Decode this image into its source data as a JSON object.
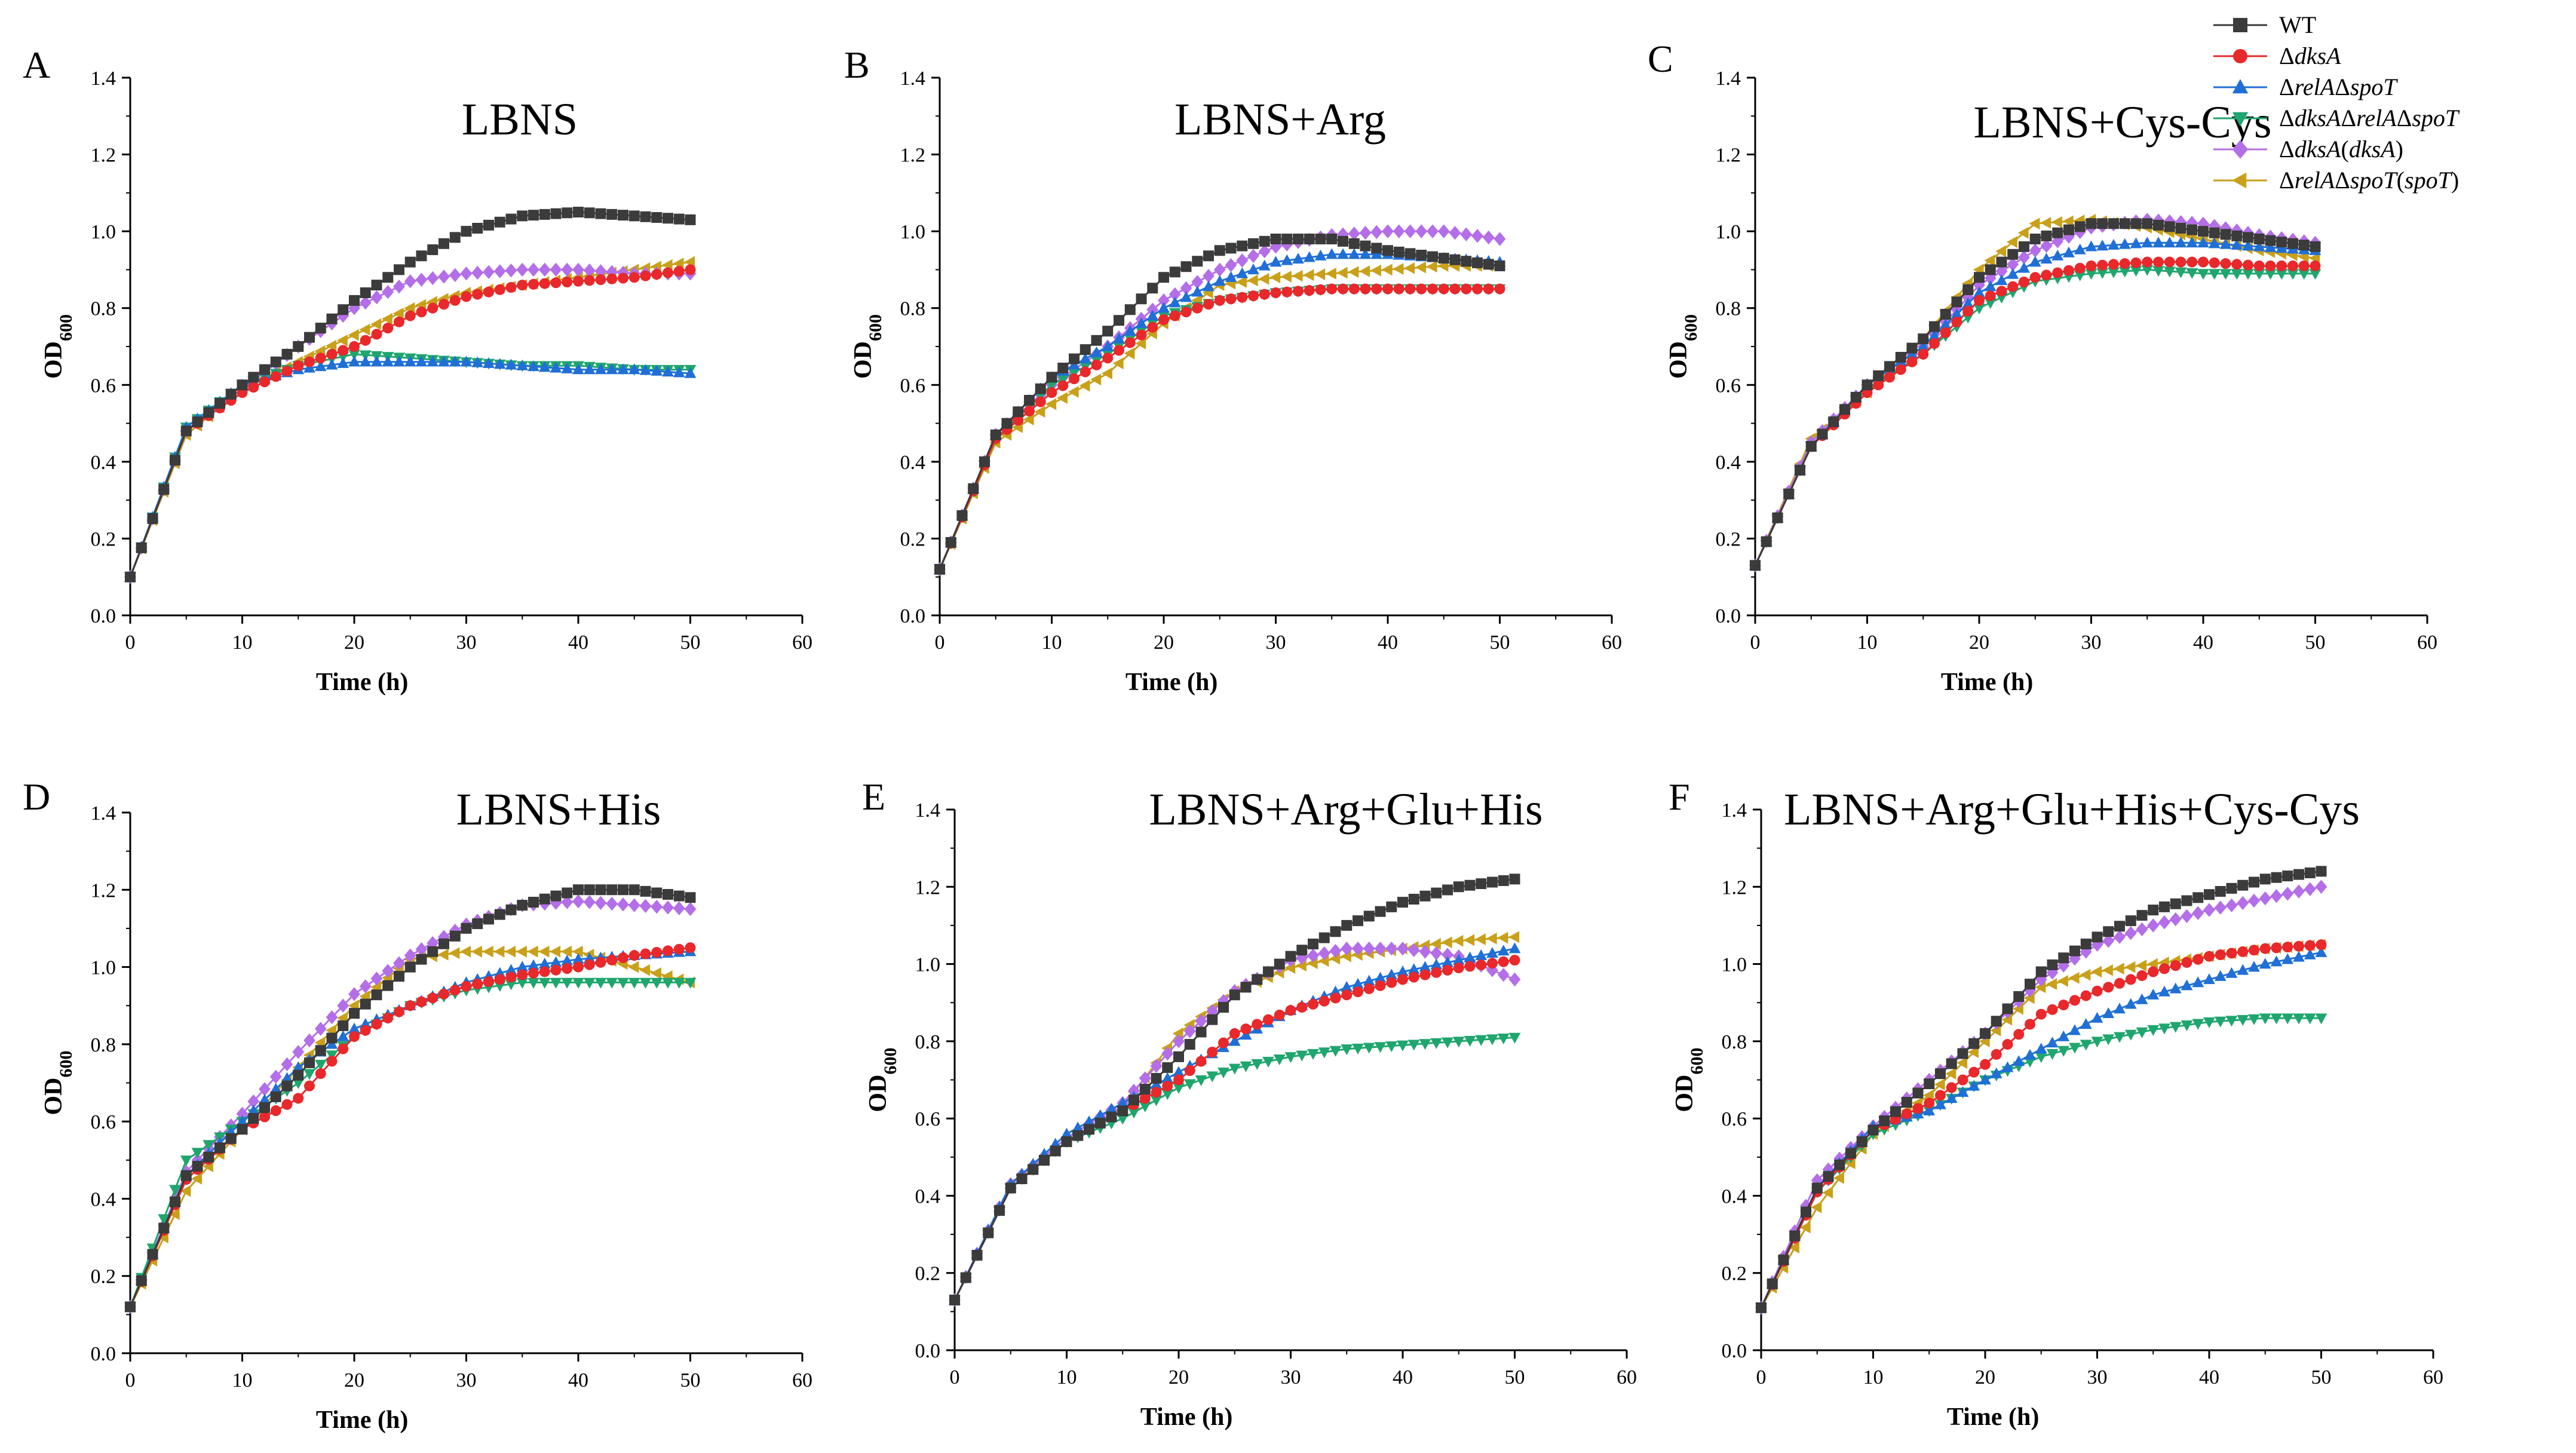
{
  "legend": [
    {
      "key": "WT",
      "parts": [
        {
          "t": "WT",
          "i": false
        }
      ],
      "color": "#3b3b3b",
      "marker": "square"
    },
    {
      "key": "dksA",
      "parts": [
        {
          "t": "Δ",
          "i": false
        },
        {
          "t": "dksA",
          "i": true
        }
      ],
      "color": "#e8282b",
      "marker": "circle"
    },
    {
      "key": "relAspoT",
      "parts": [
        {
          "t": "Δ",
          "i": false
        },
        {
          "t": "relA",
          "i": true
        },
        {
          "t": "Δ",
          "i": false
        },
        {
          "t": "spoT",
          "i": true
        }
      ],
      "color": "#1f6fd6",
      "marker": "triangle-up"
    },
    {
      "key": "dksArelAspoT",
      "parts": [
        {
          "t": "Δ",
          "i": false
        },
        {
          "t": "dksA",
          "i": true
        },
        {
          "t": "Δ",
          "i": false
        },
        {
          "t": "relA",
          "i": true
        },
        {
          "t": "Δ",
          "i": false
        },
        {
          "t": "spoT",
          "i": true
        }
      ],
      "color": "#1fa66e",
      "marker": "triangle-down"
    },
    {
      "key": "dksA_comp",
      "parts": [
        {
          "t": "Δ",
          "i": false
        },
        {
          "t": "dksA",
          "i": true
        },
        {
          "t": "(",
          "i": false
        },
        {
          "t": "dksA",
          "i": true
        },
        {
          "t": ")",
          "i": false
        }
      ],
      "color": "#b46ee8",
      "marker": "diamond"
    },
    {
      "key": "relAspoT_comp",
      "parts": [
        {
          "t": "Δ",
          "i": false
        },
        {
          "t": "relA",
          "i": true
        },
        {
          "t": "Δ",
          "i": false
        },
        {
          "t": "spoT",
          "i": true
        },
        {
          "t": "(",
          "i": false
        },
        {
          "t": "spoT",
          "i": true
        },
        {
          "t": ")",
          "i": false
        }
      ],
      "color": "#c9a01a",
      "marker": "triangle-left"
    }
  ],
  "chart_data": [
    {
      "type": "line",
      "panel": "A",
      "title": "LBNS",
      "xlabel": "Time (h)",
      "ylabel": "OD600",
      "xlim": [
        0,
        60
      ],
      "ylim": [
        0,
        1.4
      ],
      "xticks": [
        "0",
        "10",
        "20",
        "30",
        "40",
        "50",
        "60"
      ],
      "yticks": [
        "0.0",
        "0.2",
        "0.4",
        "0.6",
        "0.8",
        "1.0",
        "1.2",
        "1.4"
      ],
      "x": [
        0,
        5,
        10,
        15,
        20,
        25,
        30,
        35,
        40,
        45,
        50
      ],
      "series": [
        {
          "name": "WT",
          "values": [
            0.1,
            0.48,
            0.6,
            0.7,
            0.82,
            0.92,
            1.0,
            1.04,
            1.05,
            1.04,
            1.03
          ]
        },
        {
          "name": "ΔdksA",
          "values": [
            0.1,
            0.48,
            0.58,
            0.65,
            0.7,
            0.78,
            0.83,
            0.86,
            0.87,
            0.88,
            0.9
          ]
        },
        {
          "name": "ΔrelAΔspoT",
          "values": [
            0.1,
            0.49,
            0.6,
            0.64,
            0.66,
            0.66,
            0.66,
            0.65,
            0.64,
            0.64,
            0.63
          ]
        },
        {
          "name": "ΔdksAΔrelAΔspoT",
          "values": [
            0.1,
            0.49,
            0.6,
            0.65,
            0.68,
            0.67,
            0.66,
            0.65,
            0.65,
            0.64,
            0.64
          ]
        },
        {
          "name": "ΔdksA(dksA)",
          "values": [
            0.1,
            0.48,
            0.59,
            0.7,
            0.8,
            0.87,
            0.89,
            0.9,
            0.9,
            0.89,
            0.89
          ]
        },
        {
          "name": "ΔrelAΔspoT(spoT)",
          "values": [
            0.1,
            0.47,
            0.59,
            0.66,
            0.73,
            0.8,
            0.84,
            0.86,
            0.88,
            0.9,
            0.92
          ]
        }
      ]
    },
    {
      "type": "line",
      "panel": "B",
      "title": "LBNS+Arg",
      "xlabel": "Time (h)",
      "ylabel": "OD600",
      "xlim": [
        0,
        60
      ],
      "ylim": [
        0,
        1.4
      ],
      "xticks": [
        "0",
        "10",
        "20",
        "30",
        "40",
        "50",
        "60"
      ],
      "yticks": [
        "0.0",
        "0.2",
        "0.4",
        "0.6",
        "0.8",
        "1.0",
        "1.2",
        "1.4"
      ],
      "x": [
        0,
        5,
        10,
        15,
        20,
        25,
        30,
        35,
        40,
        45,
        50
      ],
      "series": [
        {
          "name": "WT",
          "values": [
            0.12,
            0.47,
            0.62,
            0.74,
            0.88,
            0.95,
            0.98,
            0.98,
            0.95,
            0.93,
            0.91
          ]
        },
        {
          "name": "ΔdksA",
          "values": [
            0.12,
            0.46,
            0.58,
            0.67,
            0.77,
            0.82,
            0.84,
            0.85,
            0.85,
            0.85,
            0.85
          ]
        },
        {
          "name": "ΔrelAΔspoT",
          "values": [
            0.12,
            0.47,
            0.62,
            0.7,
            0.8,
            0.87,
            0.92,
            0.94,
            0.94,
            0.93,
            0.92
          ]
        },
        {
          "name": "ΔdksAΔrelAΔspoT",
          "values": [
            0.12,
            0.46,
            0.6,
            0.68,
            0.78,
            0.82,
            0.84,
            0.85,
            0.85,
            0.85,
            0.85
          ]
        },
        {
          "name": "ΔdksA(dksA)",
          "values": [
            0.12,
            0.47,
            0.6,
            0.7,
            0.82,
            0.9,
            0.96,
            0.99,
            1.0,
            1.0,
            0.98
          ]
        },
        {
          "name": "ΔrelAΔspoT(spoT)",
          "values": [
            0.12,
            0.45,
            0.55,
            0.63,
            0.76,
            0.86,
            0.88,
            0.89,
            0.9,
            0.91,
            0.91
          ]
        }
      ]
    },
    {
      "type": "line",
      "panel": "C",
      "title": "LBNS+Cys-Cys",
      "xlabel": "Time (h)",
      "ylabel": "OD600",
      "xlim": [
        0,
        60
      ],
      "ylim": [
        0,
        1.4
      ],
      "xticks": [
        "0",
        "10",
        "20",
        "30",
        "40",
        "50",
        "60"
      ],
      "yticks": [
        "0.0",
        "0.2",
        "0.4",
        "0.6",
        "0.8",
        "1.0",
        "1.2",
        "1.4"
      ],
      "x": [
        0,
        5,
        10,
        15,
        20,
        25,
        30,
        35,
        40,
        45,
        50
      ],
      "series": [
        {
          "name": "WT",
          "values": [
            0.13,
            0.44,
            0.6,
            0.72,
            0.88,
            0.98,
            1.02,
            1.02,
            1.0,
            0.98,
            0.96
          ]
        },
        {
          "name": "ΔdksA",
          "values": [
            0.13,
            0.44,
            0.58,
            0.68,
            0.82,
            0.88,
            0.91,
            0.92,
            0.92,
            0.91,
            0.91
          ]
        },
        {
          "name": "ΔrelAΔspoT",
          "values": [
            0.13,
            0.44,
            0.6,
            0.7,
            0.84,
            0.92,
            0.96,
            0.97,
            0.97,
            0.96,
            0.95
          ]
        },
        {
          "name": "ΔdksAΔrelAΔspoT",
          "values": [
            0.13,
            0.44,
            0.59,
            0.68,
            0.8,
            0.87,
            0.89,
            0.9,
            0.89,
            0.89,
            0.89
          ]
        },
        {
          "name": "ΔdksA(dksA)",
          "values": [
            0.13,
            0.45,
            0.6,
            0.7,
            0.86,
            0.95,
            1.01,
            1.03,
            1.02,
            0.99,
            0.97
          ]
        },
        {
          "name": "ΔrelAΔspoT(spoT)",
          "values": [
            0.13,
            0.46,
            0.58,
            0.72,
            0.9,
            1.02,
            1.03,
            1.01,
            0.98,
            0.95,
            0.93
          ]
        }
      ]
    },
    {
      "type": "line",
      "panel": "D",
      "title": "LBNS+His",
      "xlabel": "Time (h)",
      "ylabel": "OD600",
      "xlim": [
        0,
        60
      ],
      "ylim": [
        0,
        1.4
      ],
      "xticks": [
        "0",
        "10",
        "20",
        "30",
        "40",
        "50",
        "60"
      ],
      "yticks": [
        "0.0",
        "0.2",
        "0.4",
        "0.6",
        "0.8",
        "1.0",
        "1.2",
        "1.4"
      ],
      "x": [
        0,
        5,
        10,
        15,
        20,
        25,
        30,
        35,
        40,
        45,
        50
      ],
      "series": [
        {
          "name": "WT",
          "values": [
            0.12,
            0.46,
            0.58,
            0.72,
            0.88,
            1.0,
            1.1,
            1.16,
            1.2,
            1.2,
            1.18
          ]
        },
        {
          "name": "ΔdksA",
          "values": [
            0.12,
            0.45,
            0.58,
            0.66,
            0.82,
            0.9,
            0.95,
            0.98,
            1.0,
            1.03,
            1.05
          ]
        },
        {
          "name": "ΔrelAΔspoT",
          "values": [
            0.12,
            0.46,
            0.6,
            0.74,
            0.84,
            0.9,
            0.96,
            1.0,
            1.02,
            1.03,
            1.04
          ]
        },
        {
          "name": "ΔdksAΔrelAΔspoT",
          "values": [
            0.12,
            0.5,
            0.6,
            0.7,
            0.82,
            0.9,
            0.94,
            0.96,
            0.96,
            0.96,
            0.96
          ]
        },
        {
          "name": "ΔdksA(dksA)",
          "values": [
            0.12,
            0.47,
            0.62,
            0.78,
            0.93,
            1.03,
            1.11,
            1.16,
            1.17,
            1.16,
            1.15
          ]
        },
        {
          "name": "ΔrelAΔspoT(spoT)",
          "values": [
            0.12,
            0.42,
            0.58,
            0.74,
            0.9,
            1.02,
            1.04,
            1.04,
            1.04,
            1.0,
            0.96
          ]
        }
      ]
    },
    {
      "type": "line",
      "panel": "E",
      "title": "LBNS+Arg+Glu+His",
      "xlabel": "Time (h)",
      "ylabel": "OD600",
      "xlim": [
        0,
        60
      ],
      "ylim": [
        0,
        1.4
      ],
      "xticks": [
        "0",
        "10",
        "20",
        "30",
        "40",
        "50",
        "60"
      ],
      "yticks": [
        "0.0",
        "0.2",
        "0.4",
        "0.6",
        "0.8",
        "1.0",
        "1.2",
        "1.4"
      ],
      "x": [
        0,
        5,
        10,
        15,
        20,
        25,
        30,
        35,
        40,
        45,
        50
      ],
      "series": [
        {
          "name": "WT",
          "values": [
            0.13,
            0.42,
            0.54,
            0.62,
            0.76,
            0.92,
            1.02,
            1.1,
            1.16,
            1.2,
            1.22
          ]
        },
        {
          "name": "ΔdksA",
          "values": [
            0.13,
            0.42,
            0.54,
            0.62,
            0.7,
            0.82,
            0.88,
            0.92,
            0.96,
            0.99,
            1.01
          ]
        },
        {
          "name": "ΔrelAΔspoT",
          "values": [
            0.13,
            0.43,
            0.56,
            0.64,
            0.72,
            0.8,
            0.88,
            0.94,
            0.98,
            1.01,
            1.04
          ]
        },
        {
          "name": "ΔdksAΔrelAΔspoT",
          "values": [
            0.13,
            0.42,
            0.54,
            0.6,
            0.68,
            0.73,
            0.76,
            0.78,
            0.79,
            0.8,
            0.81
          ]
        },
        {
          "name": "ΔdksA(dksA)",
          "values": [
            0.13,
            0.43,
            0.55,
            0.64,
            0.8,
            0.93,
            1.01,
            1.04,
            1.04,
            1.02,
            0.96
          ]
        },
        {
          "name": "ΔrelAΔspoT(spoT)",
          "values": [
            0.13,
            0.43,
            0.54,
            0.63,
            0.82,
            0.93,
            0.99,
            1.02,
            1.04,
            1.06,
            1.07
          ]
        }
      ]
    },
    {
      "type": "line",
      "panel": "F",
      "title": "LBNS+Arg+Glu+His+Cys-Cys",
      "xlabel": "Time (h)",
      "ylabel": "OD600",
      "xlim": [
        0,
        60
      ],
      "ylim": [
        0,
        1.4
      ],
      "xticks": [
        "0",
        "10",
        "20",
        "30",
        "40",
        "50",
        "60"
      ],
      "yticks": [
        "0.0",
        "0.2",
        "0.4",
        "0.6",
        "0.8",
        "1.0",
        "1.2",
        "1.4"
      ],
      "x": [
        0,
        5,
        10,
        15,
        20,
        25,
        30,
        35,
        40,
        45,
        50
      ],
      "series": [
        {
          "name": "WT",
          "values": [
            0.11,
            0.42,
            0.57,
            0.69,
            0.82,
            0.98,
            1.07,
            1.14,
            1.18,
            1.22,
            1.24
          ]
        },
        {
          "name": "ΔdksA",
          "values": [
            0.11,
            0.41,
            0.57,
            0.64,
            0.74,
            0.87,
            0.93,
            0.98,
            1.02,
            1.04,
            1.05
          ]
        },
        {
          "name": "ΔrelAΔspoT",
          "values": [
            0.11,
            0.42,
            0.58,
            0.62,
            0.7,
            0.78,
            0.86,
            0.92,
            0.96,
            1.0,
            1.03
          ]
        },
        {
          "name": "ΔdksAΔrelAΔspoT",
          "values": [
            0.11,
            0.41,
            0.56,
            0.62,
            0.7,
            0.76,
            0.8,
            0.83,
            0.85,
            0.86,
            0.86
          ]
        },
        {
          "name": "ΔdksA(dksA)",
          "values": [
            0.11,
            0.44,
            0.58,
            0.7,
            0.82,
            0.96,
            1.05,
            1.1,
            1.14,
            1.17,
            1.2
          ]
        },
        {
          "name": "ΔrelAΔspoT(spoT)",
          "values": [
            0.11,
            0.37,
            0.56,
            0.66,
            0.8,
            0.94,
            0.98,
            1.0,
            1.02,
            1.04,
            1.05
          ]
        }
      ]
    }
  ]
}
